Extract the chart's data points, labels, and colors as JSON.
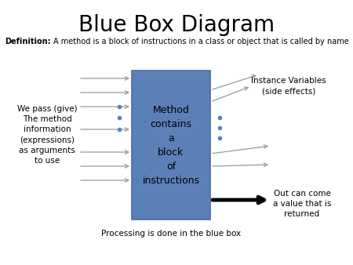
{
  "title": "Blue Box Diagram",
  "title_fontsize": 20,
  "box_label": "Method\ncontains\na\nblock\nof\ninstructions",
  "box_color": "#5b80b8",
  "box_edge_color": "#4a6fa0",
  "left_label": "We pass (give)\nThe method\ninformation\n(expressions)\nas arguments\nto use",
  "bottom_label": "Processing is done in the blue box",
  "top_right_label": "Instance Variables\n(side effects)",
  "bottom_right_label": "Out can come\na value that is\nreturned",
  "background_color": "#ffffff",
  "text_color": "#000000",
  "arrow_color": "#999999",
  "bold_arrow_color": "#000000",
  "dot_color": "#5b80b8"
}
